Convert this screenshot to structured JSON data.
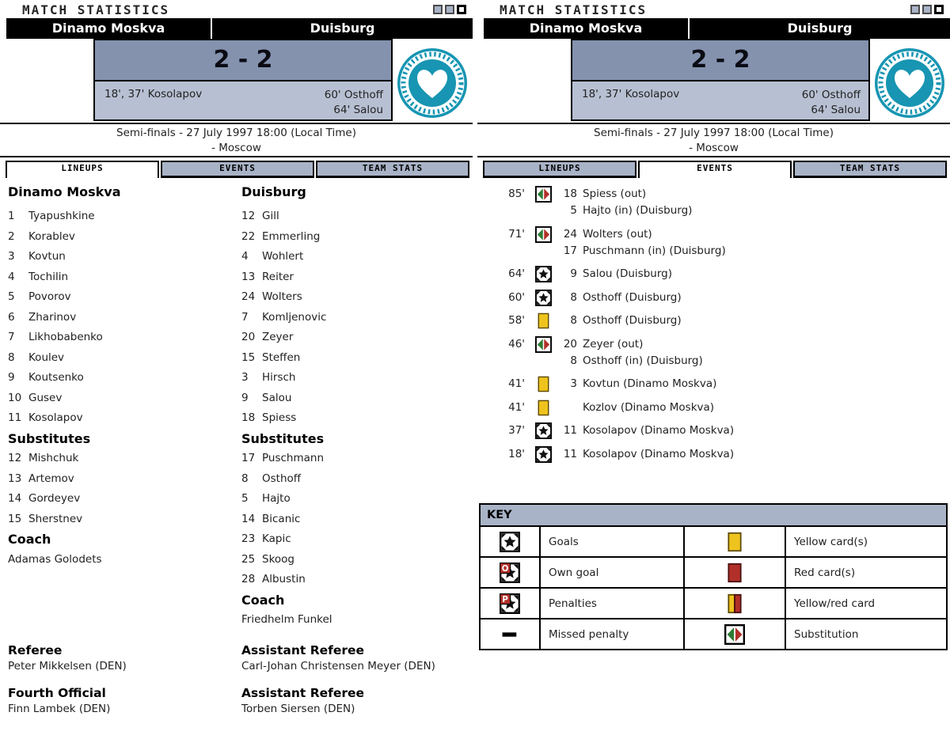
{
  "colors": {
    "panel_gray": "#a9b3c7",
    "score_bg": "#8492ae",
    "scorers_bg": "#b7c0d2",
    "logo_teal": "#1795b2",
    "yellow": "#efc31e",
    "red": "#b13029",
    "green": "#2e7c33"
  },
  "title_bar": {
    "title": "MATCH STATISTICS"
  },
  "match": {
    "home_team": "Dinamo Moskva",
    "away_team": "Duisburg",
    "score": "2 - 2",
    "home_scorers": "18', 37' Kosolapov",
    "away_scorers": [
      "60' Osthoff",
      "64' Salou"
    ],
    "info_line1": "Semi-finals - 27 July 1997 18:00 (Local Time)",
    "info_line2": "- Moscow"
  },
  "tabs": {
    "labels": [
      "LINEUPS",
      "EVENTS",
      "TEAM STATS"
    ],
    "left_active": "LINEUPS",
    "right_active": "EVENTS"
  },
  "lineups": {
    "home": {
      "team": "Dinamo Moskva",
      "players": [
        {
          "num": "1",
          "name": "Tyapushkine"
        },
        {
          "num": "2",
          "name": "Korablev"
        },
        {
          "num": "3",
          "name": "Kovtun"
        },
        {
          "num": "4",
          "name": "Tochilin"
        },
        {
          "num": "5",
          "name": "Povorov"
        },
        {
          "num": "6",
          "name": "Zharinov"
        },
        {
          "num": "7",
          "name": "Likhobabenko"
        },
        {
          "num": "8",
          "name": "Koulev"
        },
        {
          "num": "9",
          "name": "Koutsenko"
        },
        {
          "num": "10",
          "name": "Gusev"
        },
        {
          "num": "11",
          "name": "Kosolapov"
        }
      ],
      "substitutes_label": "Substitutes",
      "substitutes": [
        {
          "num": "12",
          "name": "Mishchuk"
        },
        {
          "num": "13",
          "name": "Artemov"
        },
        {
          "num": "14",
          "name": "Gordeyev"
        },
        {
          "num": "15",
          "name": "Sherstnev"
        }
      ],
      "coach_label": "Coach",
      "coach": "Adamas Golodets"
    },
    "away": {
      "team": "Duisburg",
      "players": [
        {
          "num": "12",
          "name": "Gill"
        },
        {
          "num": "22",
          "name": "Emmerling"
        },
        {
          "num": "4",
          "name": "Wohlert"
        },
        {
          "num": "13",
          "name": "Reiter"
        },
        {
          "num": "24",
          "name": "Wolters"
        },
        {
          "num": "7",
          "name": "Komljenovic"
        },
        {
          "num": "20",
          "name": "Zeyer"
        },
        {
          "num": "15",
          "name": "Steffen"
        },
        {
          "num": "3",
          "name": "Hirsch"
        },
        {
          "num": "9",
          "name": "Salou"
        },
        {
          "num": "18",
          "name": "Spiess"
        }
      ],
      "substitutes_label": "Substitutes",
      "substitutes": [
        {
          "num": "17",
          "name": "Puschmann"
        },
        {
          "num": "8",
          "name": "Osthoff"
        },
        {
          "num": "5",
          "name": "Hajto"
        },
        {
          "num": "14",
          "name": "Bicanic"
        },
        {
          "num": "23",
          "name": "Kapic"
        },
        {
          "num": "25",
          "name": "Skoog"
        },
        {
          "num": "28",
          "name": "Albustin"
        }
      ],
      "coach_label": "Coach",
      "coach": "Friedhelm Funkel"
    }
  },
  "officials": [
    {
      "role": "Referee",
      "name": "Peter Mikkelsen (DEN)"
    },
    {
      "role": "Assistant Referee",
      "name": "Carl-Johan Christensen Meyer (DEN)"
    },
    {
      "role": "Fourth Official",
      "name": "Finn Lambek (DEN)"
    },
    {
      "role": "Assistant Referee",
      "name": "Torben Siersen (DEN)"
    }
  ],
  "events": [
    {
      "minute": "85'",
      "icon": "substitution",
      "lines": [
        {
          "num": "18",
          "text": "Spiess (out)"
        },
        {
          "num": "5",
          "text": "Hajto (in) (Duisburg)"
        }
      ]
    },
    {
      "minute": "71'",
      "icon": "substitution",
      "lines": [
        {
          "num": "24",
          "text": "Wolters (out)"
        },
        {
          "num": "17",
          "text": "Puschmann (in) (Duisburg)"
        }
      ]
    },
    {
      "minute": "64'",
      "icon": "goal",
      "lines": [
        {
          "num": "9",
          "text": "Salou (Duisburg)"
        }
      ]
    },
    {
      "minute": "60'",
      "icon": "goal",
      "lines": [
        {
          "num": "8",
          "text": "Osthoff (Duisburg)"
        }
      ]
    },
    {
      "minute": "58'",
      "icon": "yellow-card",
      "lines": [
        {
          "num": "8",
          "text": "Osthoff (Duisburg)"
        }
      ]
    },
    {
      "minute": "46'",
      "icon": "substitution",
      "lines": [
        {
          "num": "20",
          "text": "Zeyer (out)"
        },
        {
          "num": "8",
          "text": "Osthoff (in) (Duisburg)"
        }
      ]
    },
    {
      "minute": "41'",
      "icon": "yellow-card",
      "lines": [
        {
          "num": "3",
          "text": "Kovtun (Dinamo Moskva)"
        }
      ]
    },
    {
      "minute": "41'",
      "icon": "yellow-card",
      "lines": [
        {
          "num": "",
          "text": "Kozlov (Dinamo Moskva)"
        }
      ]
    },
    {
      "minute": "37'",
      "icon": "goal",
      "lines": [
        {
          "num": "11",
          "text": "Kosolapov (Dinamo Moskva)"
        }
      ]
    },
    {
      "minute": "18'",
      "icon": "goal",
      "lines": [
        {
          "num": "11",
          "text": "Kosolapov (Dinamo Moskva)"
        }
      ]
    }
  ],
  "key": {
    "title": "KEY",
    "rows": [
      [
        {
          "icon": "goal",
          "label": "Goals"
        },
        {
          "icon": "yellow-card",
          "label": "Yellow card(s)"
        }
      ],
      [
        {
          "icon": "own-goal",
          "label": "Own goal"
        },
        {
          "icon": "red-card",
          "label": "Red card(s)"
        }
      ],
      [
        {
          "icon": "penalty",
          "label": "Penalties"
        },
        {
          "icon": "yellow-red-card",
          "label": "Yellow/red card"
        }
      ],
      [
        {
          "icon": "missed-penalty",
          "label": "Missed penalty"
        },
        {
          "icon": "substitution",
          "label": "Substitution"
        }
      ]
    ]
  }
}
